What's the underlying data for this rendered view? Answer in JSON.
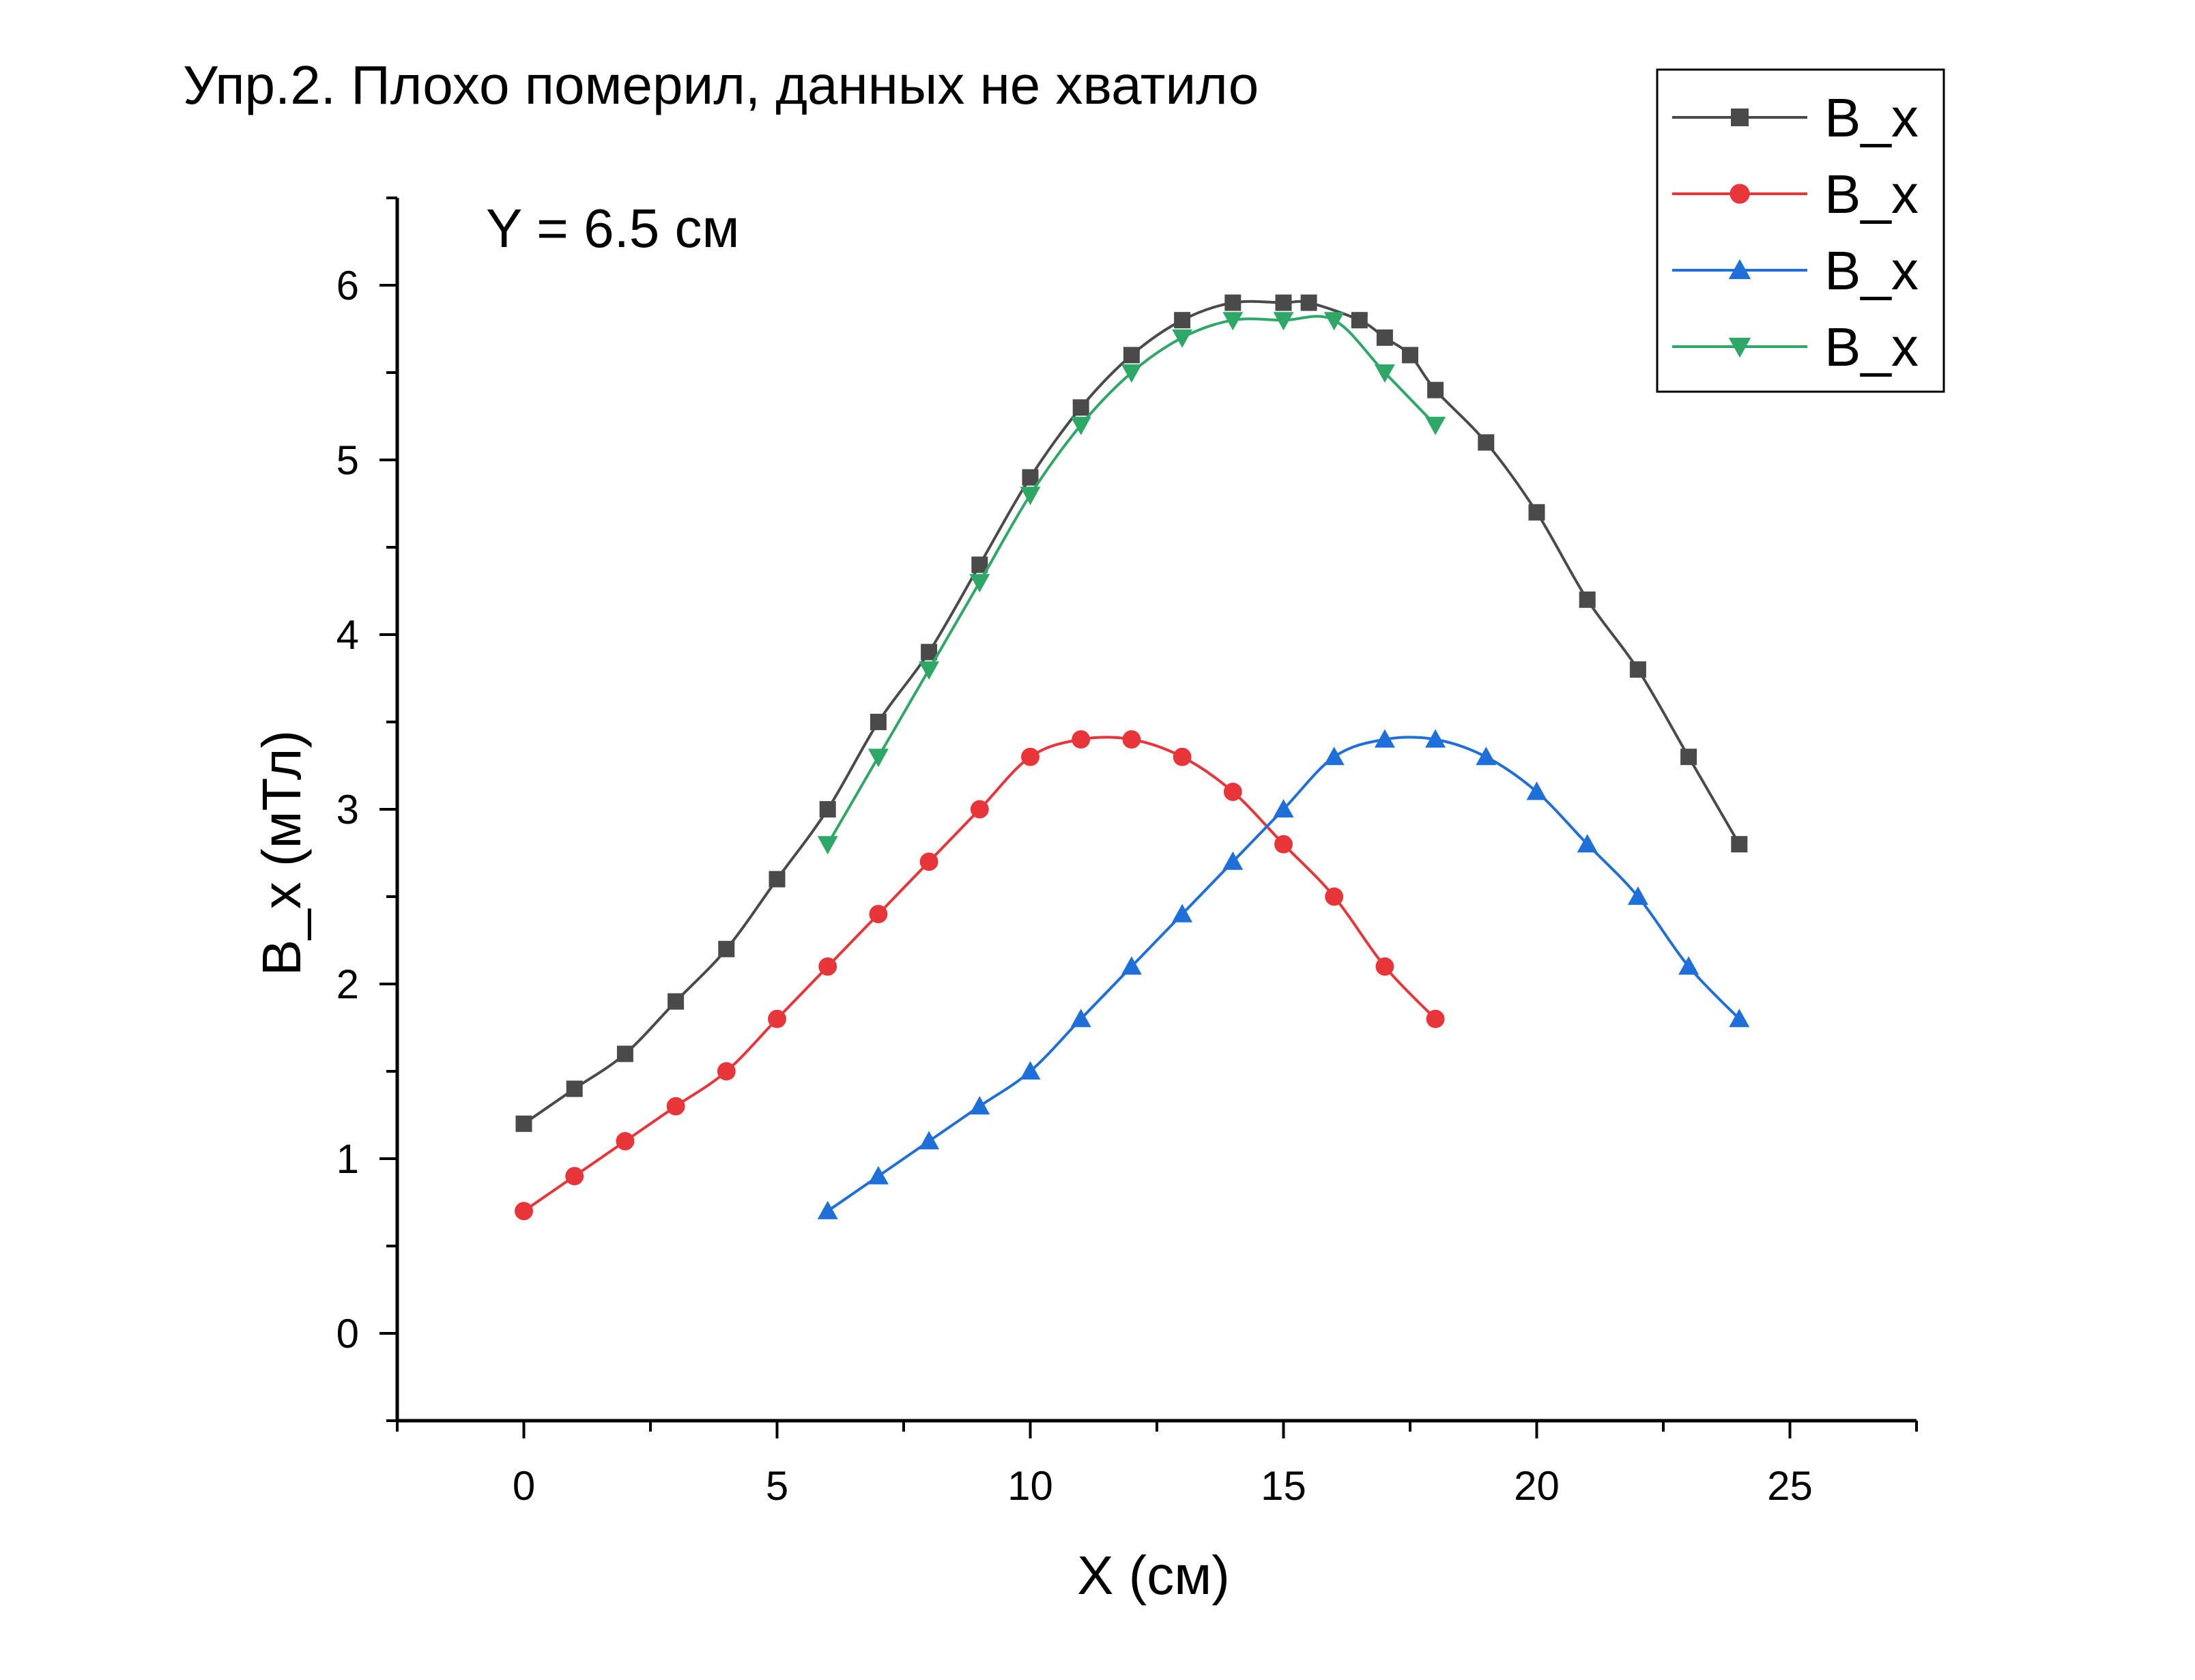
{
  "chart_data": {
    "type": "line",
    "title": "Упр.2. Плохо померил, данных не хватило",
    "annotation": "Y = 6.5 см",
    "xlabel": "X (см)",
    "ylabel": "B_x (мТл)",
    "xlim": [
      -2.5,
      27.5
    ],
    "ylim": [
      -0.5,
      6.5
    ],
    "xticks": [
      0,
      5,
      10,
      15,
      20,
      25
    ],
    "yticks": [
      0,
      1,
      2,
      3,
      4,
      5,
      6
    ],
    "grid": false,
    "legend_position": "top-right",
    "series": [
      {
        "name": "B_x",
        "color": "#4a4a4a",
        "marker": "square",
        "x": [
          0,
          1,
          2,
          3,
          4,
          5,
          6,
          7,
          8,
          9,
          10,
          11,
          12,
          13,
          14,
          15,
          15.5,
          16.5,
          17,
          17.5,
          18,
          19,
          20,
          21,
          22,
          23,
          24
        ],
        "y": [
          1.2,
          1.4,
          1.6,
          1.9,
          2.2,
          2.6,
          3.0,
          3.5,
          3.9,
          4.4,
          4.9,
          5.3,
          5.6,
          5.8,
          5.9,
          5.9,
          5.9,
          5.8,
          5.7,
          5.6,
          5.4,
          5.1,
          4.7,
          4.2,
          3.8,
          3.3,
          2.8
        ]
      },
      {
        "name": "B_x",
        "color": "#e8353a",
        "marker": "circle",
        "x": [
          0,
          1,
          2,
          3,
          4,
          5,
          6,
          7,
          8,
          9,
          10,
          11,
          12,
          13,
          14,
          15,
          16,
          17,
          18
        ],
        "y": [
          0.7,
          0.9,
          1.1,
          1.3,
          1.5,
          1.8,
          2.1,
          2.4,
          2.7,
          3.0,
          3.3,
          3.4,
          3.4,
          3.3,
          3.1,
          2.8,
          2.5,
          2.1,
          1.8
        ]
      },
      {
        "name": "B_x",
        "color": "#1e6fd9",
        "marker": "triangle-up",
        "x": [
          6,
          7,
          8,
          9,
          10,
          11,
          12,
          13,
          14,
          15,
          16,
          17,
          18,
          19,
          20,
          21,
          22,
          23,
          24
        ],
        "y": [
          0.7,
          0.9,
          1.1,
          1.3,
          1.5,
          1.8,
          2.1,
          2.4,
          2.7,
          3.0,
          3.3,
          3.4,
          3.4,
          3.3,
          3.1,
          2.8,
          2.5,
          2.1,
          1.8
        ]
      },
      {
        "name": "B_x",
        "color": "#2ea866",
        "marker": "triangle-down",
        "x": [
          6,
          7,
          8,
          9,
          10,
          11,
          12,
          13,
          14,
          15,
          16,
          17,
          18
        ],
        "y": [
          2.8,
          3.3,
          3.8,
          4.3,
          4.8,
          5.2,
          5.5,
          5.7,
          5.8,
          5.8,
          5.8,
          5.5,
          5.2
        ]
      }
    ]
  }
}
